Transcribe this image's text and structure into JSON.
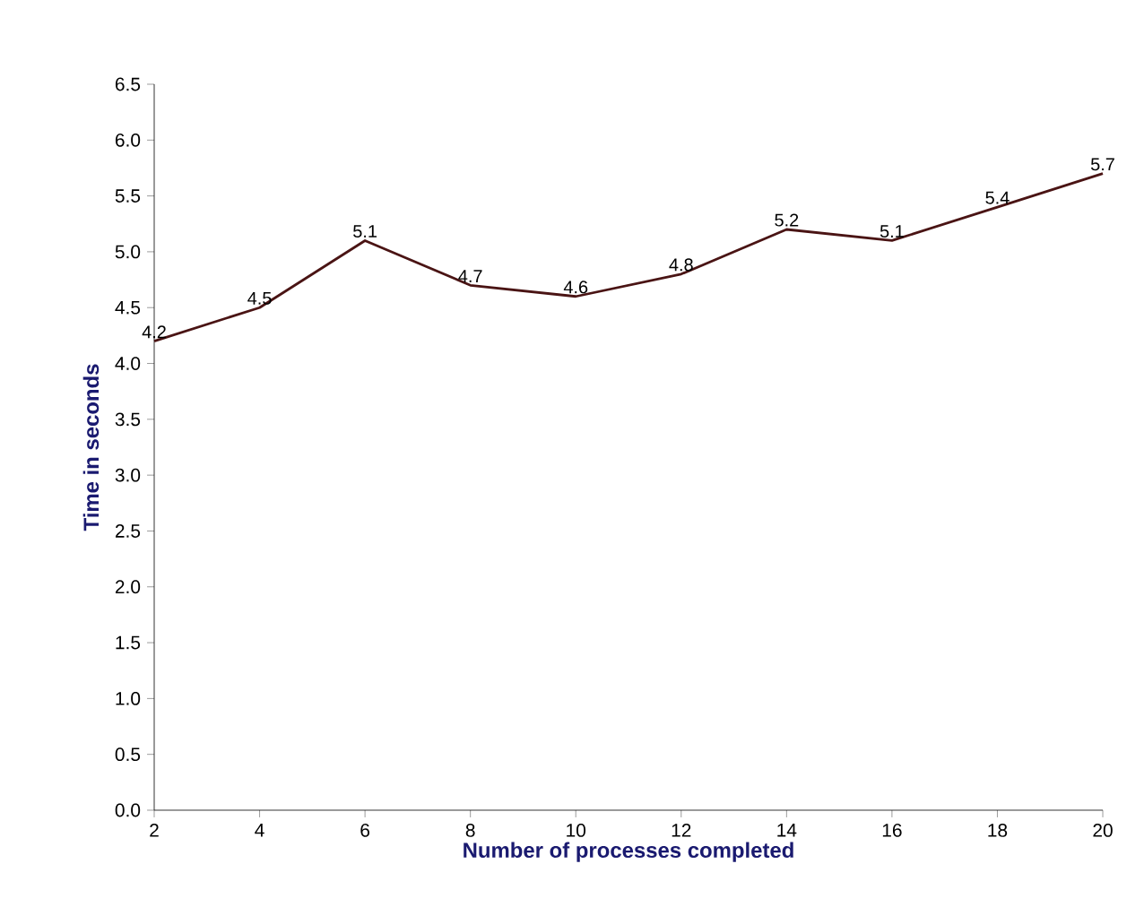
{
  "chart_data": {
    "type": "line",
    "xlabel": "Number of processes completed",
    "ylabel": "Time in seconds",
    "x": [
      2,
      4,
      6,
      8,
      10,
      12,
      14,
      16,
      18,
      20
    ],
    "values": [
      4.2,
      4.5,
      5.1,
      4.7,
      4.6,
      4.8,
      5.2,
      5.1,
      5.4,
      5.7
    ],
    "color": "#4a1414",
    "marker": "none",
    "line_style": "solid",
    "data_labels": true,
    "xlim": [
      2,
      20
    ],
    "xticks": [
      2,
      4,
      6,
      8,
      10,
      12,
      14,
      16,
      18,
      20
    ],
    "ylim": [
      0,
      6.5
    ],
    "yticks": [
      {
        "value": 0,
        "label": "0.0"
      },
      {
        "value": 0.5,
        "label": "0.5"
      },
      {
        "value": 1,
        "label": "1.0"
      },
      {
        "value": 1.5,
        "label": "1.5"
      },
      {
        "value": 2,
        "label": "2.0"
      },
      {
        "value": 2.5,
        "label": "2.5"
      },
      {
        "value": 3,
        "label": "3.0"
      },
      {
        "value": 3.5,
        "label": "3.5"
      },
      {
        "value": 4,
        "label": "4.0"
      },
      {
        "value": 4.5,
        "label": "4.5"
      },
      {
        "value": 5,
        "label": "5.0"
      },
      {
        "value": 5.5,
        "label": "5.5"
      },
      {
        "value": 6,
        "label": "6.0"
      },
      {
        "value": 6.5,
        "label": "6.5"
      }
    ]
  }
}
